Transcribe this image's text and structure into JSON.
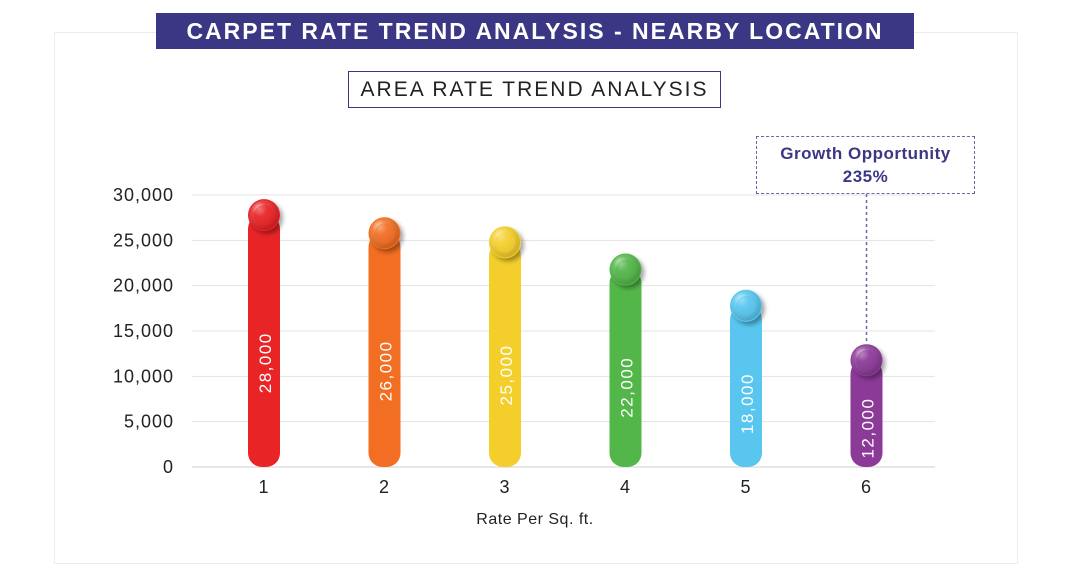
{
  "header": {
    "banner_title": "CARPET RATE TREND ANALYSIS - NEARBY LOCATION",
    "subtitle": "AREA RATE TREND ANALYSIS"
  },
  "callout": {
    "line1": "Growth Opportunity",
    "line2": "235%"
  },
  "colors": {
    "banner": "#3b3784",
    "bars": [
      "#e92426",
      "#f26e22",
      "#f4cf2c",
      "#52b748",
      "#58c6ef",
      "#8c3a98"
    ]
  },
  "chart_data": {
    "type": "bar",
    "title": "AREA RATE TREND ANALYSIS",
    "categories": [
      "1",
      "2",
      "3",
      "4",
      "5",
      "6"
    ],
    "values": [
      28000,
      26000,
      25000,
      22000,
      18000,
      12000
    ],
    "value_labels": [
      "28,000",
      "26,000",
      "25,000",
      "22,000",
      "18,000",
      "12,000"
    ],
    "ylim": [
      0,
      30000
    ],
    "yticks": [
      0,
      5000,
      10000,
      15000,
      20000,
      25000,
      30000
    ],
    "ytick_labels": [
      "0",
      "5,000",
      "10,000",
      "15,000",
      "20,000",
      "25,000",
      "30,000"
    ],
    "xlabel": "Rate Per Sq. ft.",
    "ylabel": "",
    "grid": true,
    "annotation": {
      "text": "Growth Opportunity 235%",
      "target_category": "6"
    }
  }
}
